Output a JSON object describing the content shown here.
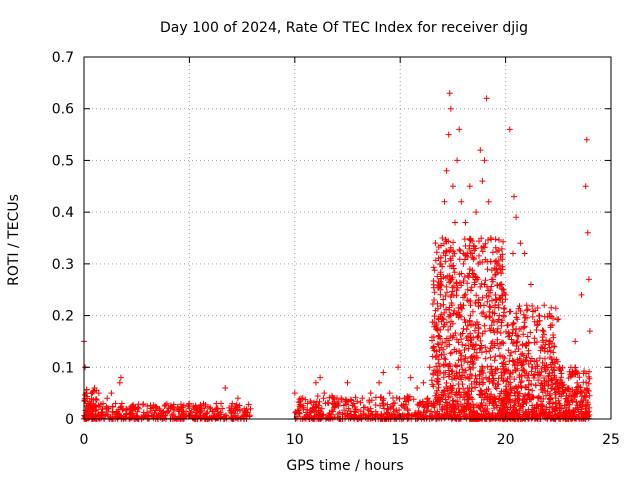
{
  "chart_data": {
    "type": "scatter",
    "title": "Day 100 of 2024, Rate Of TEC Index for receiver djig",
    "xlabel": "GPS time / hours",
    "ylabel": "ROTI / TECUs",
    "xlim": [
      0,
      25
    ],
    "ylim": [
      0,
      0.7
    ],
    "xticks": [
      "0",
      "5",
      "10",
      "15",
      "20",
      "25"
    ],
    "xtick_values": [
      0,
      5,
      10,
      15,
      20,
      25
    ],
    "yticks": [
      "0",
      "0.1",
      "0.2",
      "0.3",
      "0.4",
      "0.5",
      "0.6",
      "0.7"
    ],
    "ytick_values": [
      0,
      0.1,
      0.2,
      0.3,
      0.4,
      0.5,
      0.6,
      0.7
    ],
    "grid": true,
    "marker": "+",
    "color": "#ff0000",
    "series": [
      {
        "name": "ROTI",
        "x": [
          0.0,
          0.05,
          0.1,
          0.15,
          0.2,
          0.3,
          0.5,
          0.7,
          0.9,
          1.1,
          1.3,
          1.5,
          1.7,
          1.75,
          1.8,
          2.0,
          2.3,
          2.6,
          3.0,
          3.5,
          4.0,
          4.5,
          5.0,
          5.5,
          6.0,
          6.5,
          6.7,
          7.0,
          7.3,
          7.6,
          7.9,
          10.0,
          10.3,
          10.6,
          11.0,
          11.2,
          11.4,
          11.8,
          12.2,
          12.5,
          12.8,
          13.2,
          13.6,
          14.0,
          14.2,
          14.5,
          14.9,
          15.2,
          15.5,
          15.8,
          16.1,
          16.4,
          16.7,
          16.9,
          17.0,
          17.1,
          17.2,
          17.3,
          17.35,
          17.4,
          17.5,
          17.6,
          17.7,
          17.8,
          17.9,
          18.0,
          18.1,
          18.2,
          18.3,
          18.4,
          18.5,
          18.6,
          18.7,
          18.8,
          18.9,
          19.0,
          19.1,
          19.2,
          19.3,
          19.4,
          19.5,
          19.6,
          19.7,
          19.8,
          19.9,
          20.0,
          20.2,
          20.35,
          20.4,
          20.5,
          20.7,
          20.9,
          21.0,
          21.2,
          21.4,
          21.6,
          21.8,
          22.0,
          22.3,
          22.6,
          23.0,
          23.3,
          23.6,
          23.8,
          23.85,
          23.9,
          23.95,
          24.0
        ],
        "y": [
          0.15,
          0.1,
          0.05,
          0.04,
          0.03,
          0.02,
          0.06,
          0.05,
          0.03,
          0.04,
          0.05,
          0.03,
          0.07,
          0.08,
          0.03,
          0.02,
          0.025,
          0.02,
          0.025,
          0.02,
          0.015,
          0.02,
          0.025,
          0.02,
          0.02,
          0.03,
          0.06,
          0.025,
          0.04,
          0.02,
          0.02,
          0.05,
          0.04,
          0.03,
          0.07,
          0.08,
          0.05,
          0.03,
          0.04,
          0.07,
          0.03,
          0.04,
          0.05,
          0.07,
          0.09,
          0.05,
          0.1,
          0.04,
          0.08,
          0.06,
          0.07,
          0.1,
          0.18,
          0.25,
          0.35,
          0.42,
          0.48,
          0.55,
          0.63,
          0.6,
          0.45,
          0.38,
          0.5,
          0.56,
          0.42,
          0.3,
          0.38,
          0.25,
          0.45,
          0.32,
          0.28,
          0.4,
          0.3,
          0.52,
          0.46,
          0.5,
          0.62,
          0.42,
          0.35,
          0.27,
          0.22,
          0.3,
          0.2,
          0.18,
          0.25,
          0.24,
          0.56,
          0.32,
          0.43,
          0.39,
          0.34,
          0.32,
          0.22,
          0.26,
          0.21,
          0.2,
          0.17,
          0.13,
          0.1,
          0.07,
          0.06,
          0.15,
          0.24,
          0.45,
          0.54,
          0.36,
          0.27,
          0.17
        ],
        "density_bands": [
          {
            "x_range": [
              0.0,
              7.9
            ],
            "y_range": [
              0.0,
              0.03
            ],
            "count": 420
          },
          {
            "x_range": [
              0.0,
              0.6
            ],
            "y_range": [
              0.0,
              0.06
            ],
            "count": 60
          },
          {
            "x_range": [
              10.0,
              16.5
            ],
            "y_range": [
              0.0,
              0.045
            ],
            "count": 380
          },
          {
            "x_range": [
              16.5,
              20.0
            ],
            "y_range": [
              0.0,
              0.35
            ],
            "count": 950
          },
          {
            "x_range": [
              20.0,
              22.5
            ],
            "y_range": [
              0.0,
              0.22
            ],
            "count": 520
          },
          {
            "x_range": [
              22.5,
              24.0
            ],
            "y_range": [
              0.0,
              0.1
            ],
            "count": 220
          }
        ]
      }
    ]
  }
}
